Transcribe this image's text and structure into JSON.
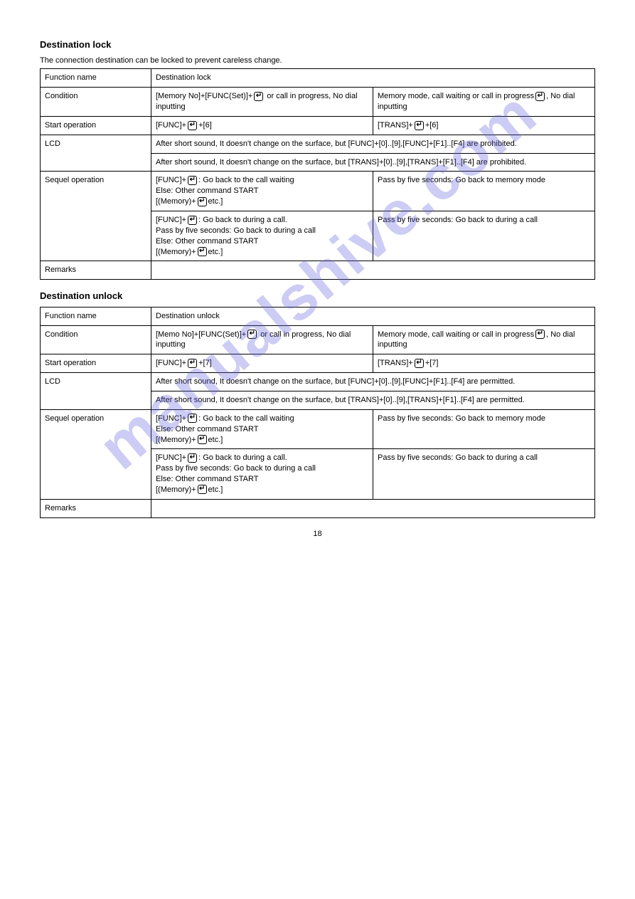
{
  "watermark": "manualshive.com",
  "page_number": "18",
  "sections": [
    {
      "title": "Destination lock",
      "intro": "The connection destination can be locked to prevent careless change.",
      "rows": [
        [
          "Function name",
          "Destination lock",
          ""
        ],
        [
          "Condition",
          "[Memory No]+[FUNC(Set)]+ ↵  or call in progress, No dial inputting",
          "Memory mode, call waiting or call in progress ↵ , No dial inputting"
        ],
        [
          "Start operation",
          "[FUNC]+ ↵ +[6]",
          "[TRANS]+ ↵ +[6]"
        ],
        [
          "LCD",
          "After short sound, It doesn't change on the surface, but [FUNC]+[0]..[9],[FUNC]+[F1]..[F4] are prohibited.",
          ""
        ],
        [
          "",
          "After short sound, It doesn't change on the surface, but [TRANS]+[0]..[9],[TRANS]+[F1]..[F4] are prohibited.",
          ""
        ],
        [
          "Sequel operation",
          "[FUNC]+ ↵ : Go back to the call waiting Else: Other command START [(Memory)+ ↵ etc.]",
          "Pass by five seconds: Go back to memory mode"
        ],
        [
          "",
          "[FUNC]+ ↵ : Go back to during a call. Pass by five seconds: Go back to during a call Else: Other command START [(Memory)+ ↵ etc.]",
          "Pass by five seconds: Go back to during a call"
        ],
        [
          "Remarks",
          "",
          ""
        ]
      ]
    },
    {
      "title": "Destination unlock",
      "intro": "",
      "rows": [
        [
          "Function name",
          "Destination unlock",
          ""
        ],
        [
          "Condition",
          "[Memo No]+[FUNC(Set)]+ ↵  or call in progress, No dial inputting",
          "Memory mode, call waiting or call in progress ↵ , No dial inputting"
        ],
        [
          "Start operation",
          "[FUNC]+ ↵ +[7]",
          "[TRANS]+ ↵ +[7]"
        ],
        [
          "LCD",
          "After short sound, It doesn't change on the surface, but [FUNC]+[0]..[9],[FUNC]+[F1]..[F4] are permitted.",
          ""
        ],
        [
          "",
          "After short sound, It doesn't change on the surface, but [TRANS]+[0]..[9],[TRANS]+[F1]..[F4] are permitted.",
          ""
        ],
        [
          "Sequel operation",
          "[FUNC]+ ↵ : Go back to the call waiting Else: Other command START [(Memory)+ ↵ etc.]",
          "Pass by five seconds: Go back to memory mode"
        ],
        [
          "",
          "[FUNC]+ ↵ : Go back to during a call. Pass by five seconds: Go back to during a call Else: Other command START [(Memory)+ ↵ etc.]",
          "Pass by five seconds: Go back to during a call"
        ],
        [
          "Remarks",
          "",
          ""
        ]
      ]
    }
  ]
}
